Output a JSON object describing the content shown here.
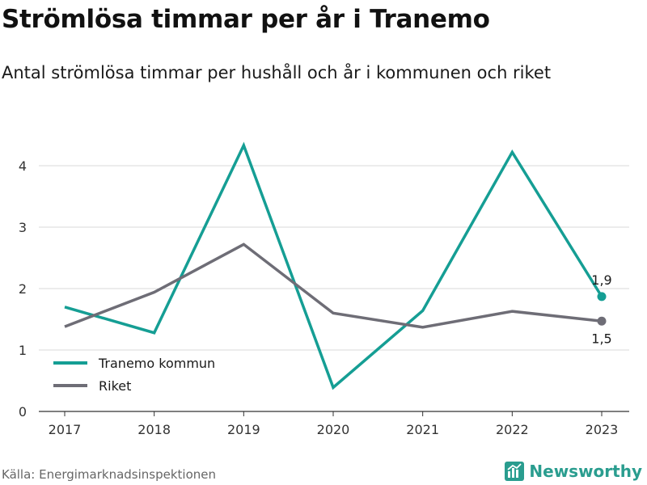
{
  "title": "Strömlösa timmar per år i Tranemo",
  "subtitle": "Antal strömlösa timmar per hushåll och år i kommunen och riket",
  "source": "Källa: Energimarknadsinspektionen",
  "brand": {
    "name": "Newsworthy",
    "icon": "chart-logo-icon",
    "color": "#2a9d8f"
  },
  "chart_data": {
    "type": "line",
    "x": [
      "2017",
      "2018",
      "2019",
      "2020",
      "2021",
      "2022",
      "2023"
    ],
    "yticks": [
      "0",
      "1",
      "2",
      "3",
      "4"
    ],
    "ylim": [
      0,
      4.5
    ],
    "grid": true,
    "legend_position": "bottom-left",
    "series": [
      {
        "name": "Tranemo kommun",
        "color": "#159e94",
        "values": [
          1.7,
          1.28,
          4.33,
          0.39,
          1.64,
          4.22,
          1.87
        ],
        "end_label": "1,9"
      },
      {
        "name": "Riket",
        "color": "#6e6d76",
        "values": [
          1.38,
          1.94,
          2.72,
          1.6,
          1.37,
          1.63,
          1.47
        ],
        "end_label": "1,5"
      }
    ]
  }
}
